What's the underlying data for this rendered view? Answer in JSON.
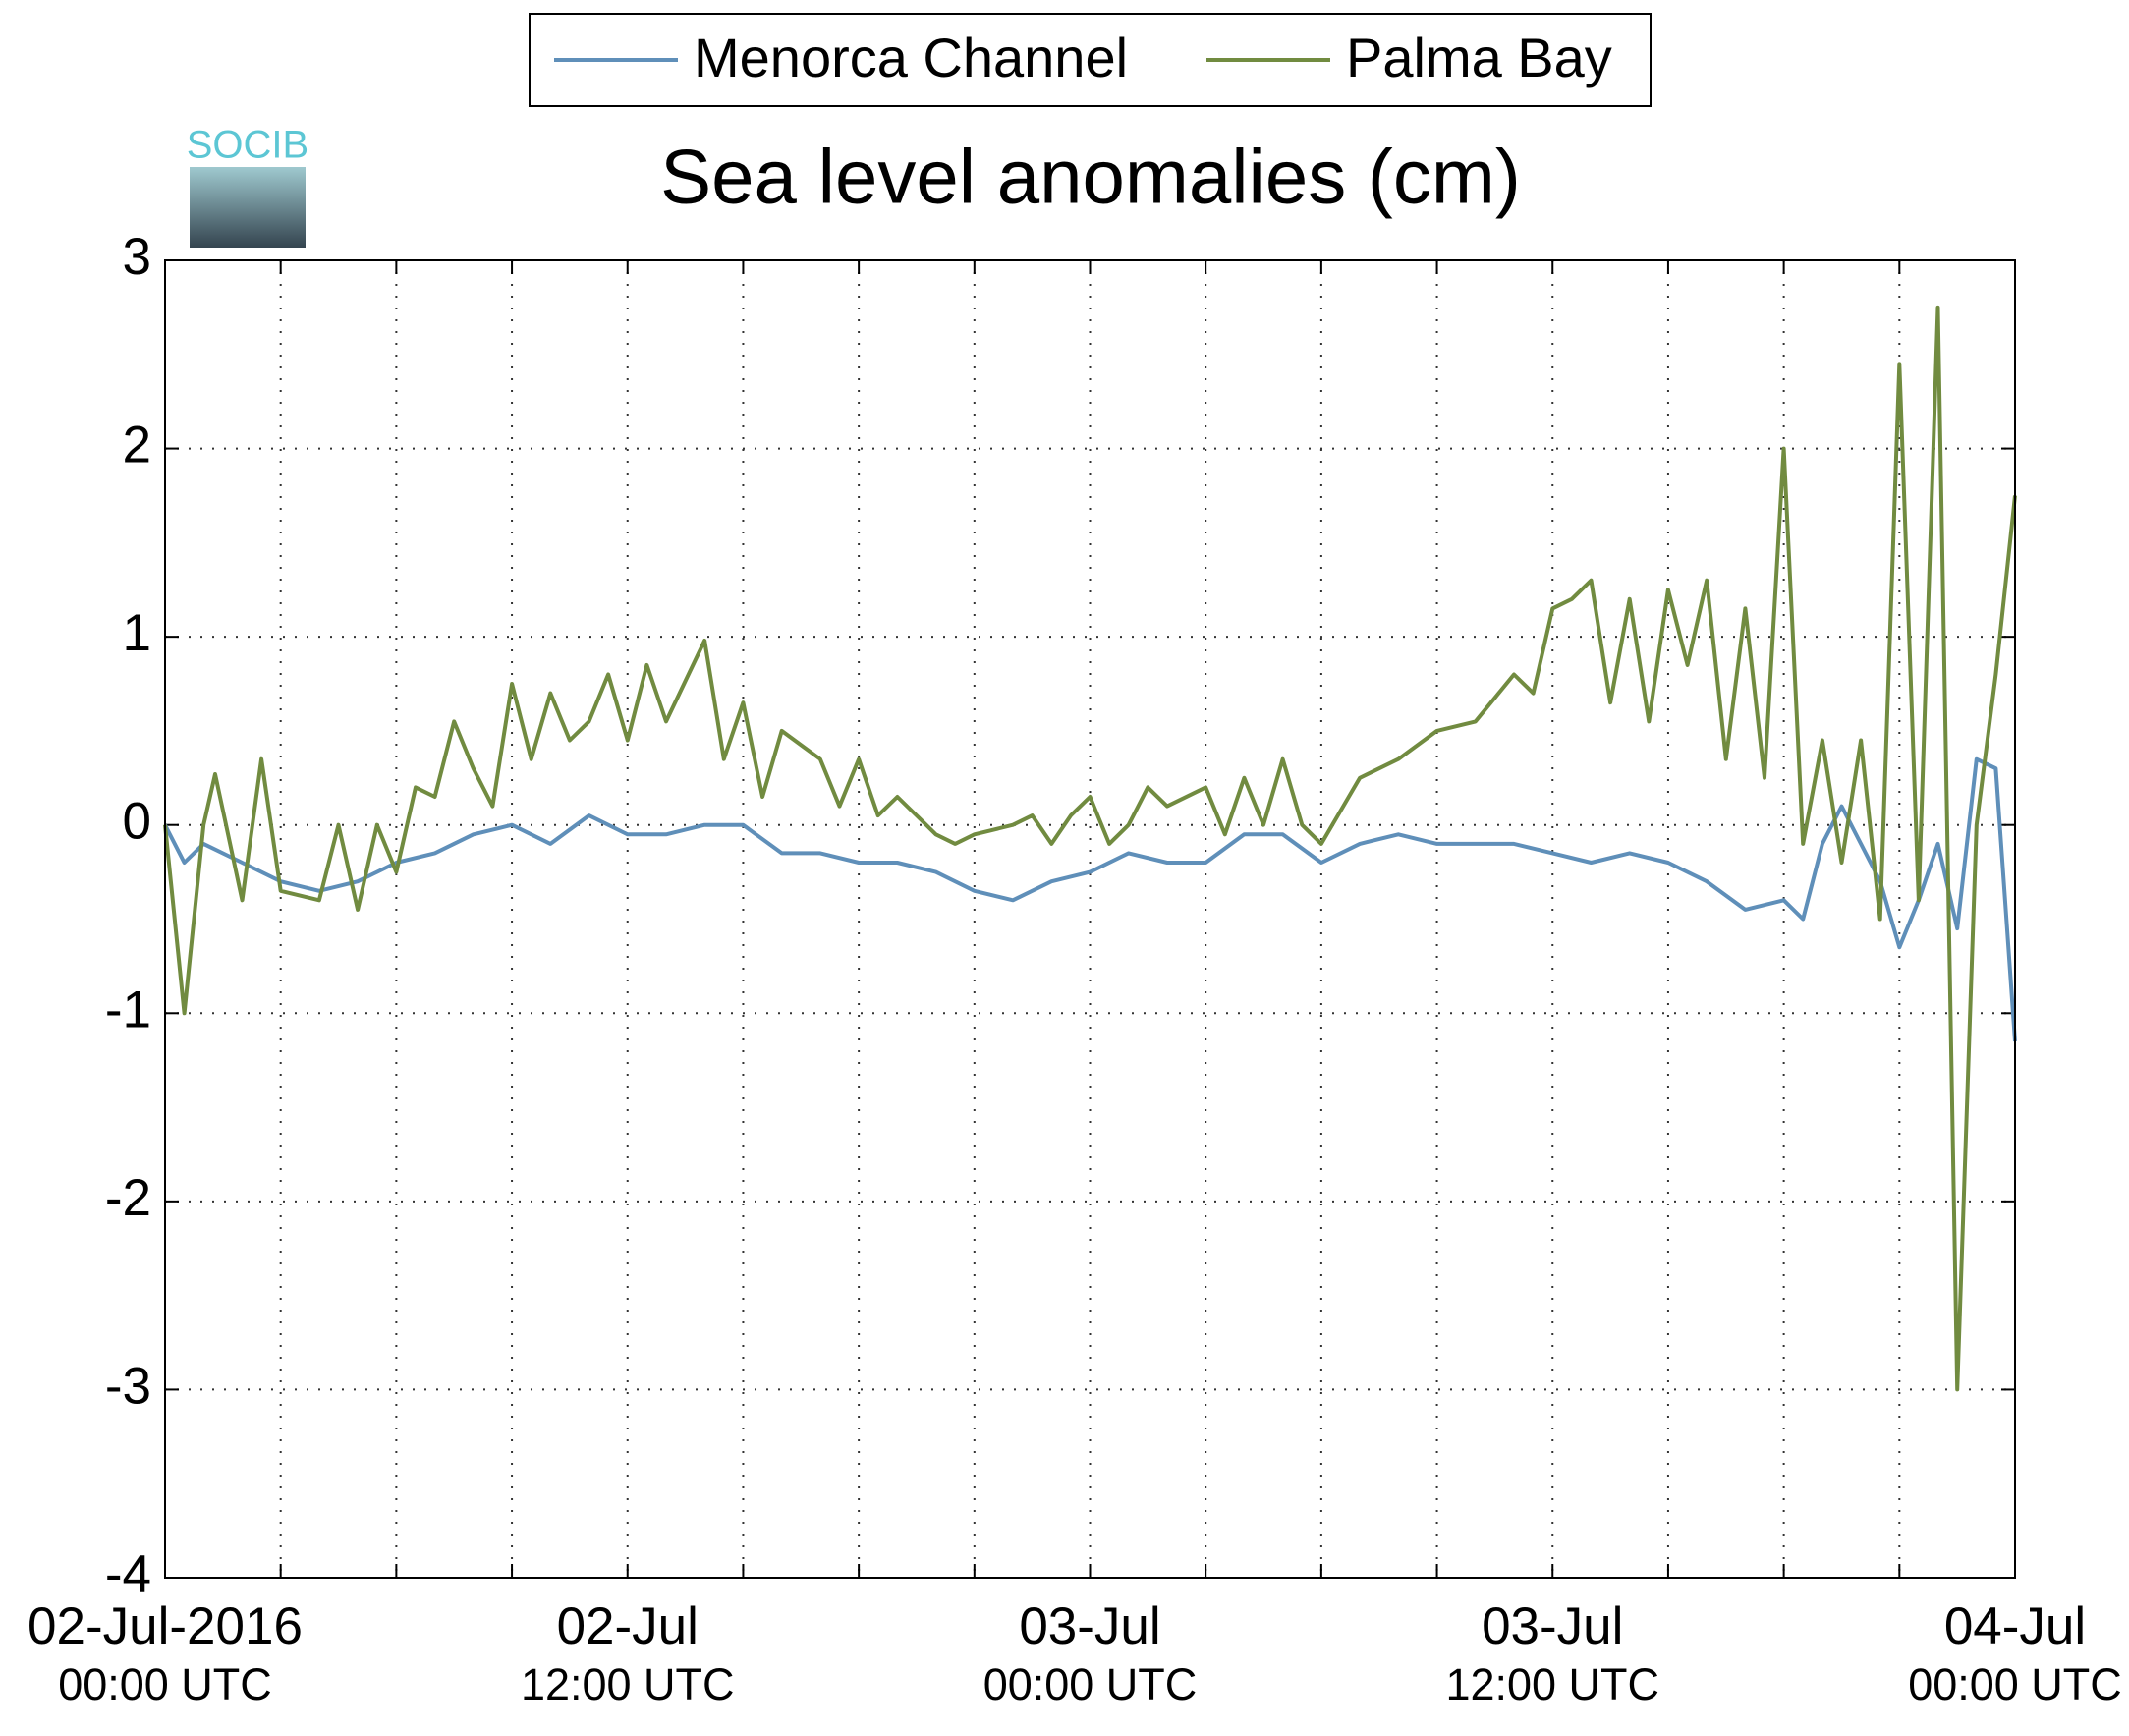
{
  "chart_data": {
    "type": "line",
    "title": "Sea level anomalies (cm)",
    "logo_text": "SOCIB",
    "legend": "top",
    "grid": true,
    "xlim": [
      0,
      48
    ],
    "xticks": [
      {
        "value": 0,
        "label": "02-Jul-2016"
      },
      {
        "value": 12,
        "label": "02-Jul"
      },
      {
        "value": 24,
        "label": "03-Jul"
      },
      {
        "value": 36,
        "label": "03-Jul"
      },
      {
        "value": 48,
        "label": "04-Jul"
      }
    ],
    "xtick_sublabels": [
      "00:00 UTC",
      "12:00 UTC",
      "00:00 UTC",
      "12:00 UTC",
      "00:00 UTC"
    ],
    "xgrid": [
      3,
      6,
      9,
      12,
      15,
      18,
      21,
      24,
      27,
      30,
      33,
      36,
      39,
      42,
      45
    ],
    "ylim": [
      -4,
      3
    ],
    "yticks": [
      -4,
      -3,
      -2,
      -1,
      0,
      1,
      2,
      3
    ],
    "series": [
      {
        "name": "Menorca Channel",
        "color": "#5f8fb9",
        "x": [
          0,
          0.5,
          1,
          2,
          3,
          4,
          5,
          6,
          7,
          8,
          9,
          10,
          11,
          12,
          13,
          14,
          15,
          16,
          17,
          18,
          19,
          20,
          21,
          22,
          23,
          24,
          25,
          26,
          27,
          28,
          29,
          30,
          31,
          32,
          33,
          34,
          35,
          36,
          37,
          38,
          39,
          40,
          41,
          42,
          42.5,
          43,
          43.5,
          44,
          44.5,
          45,
          45.5,
          46,
          46.5,
          47,
          47.5,
          48
        ],
        "values": [
          0,
          -0.2,
          -0.1,
          -0.2,
          -0.3,
          -0.35,
          -0.3,
          -0.2,
          -0.15,
          -0.05,
          0,
          -0.1,
          0.05,
          -0.05,
          -0.05,
          0,
          0,
          -0.15,
          -0.15,
          -0.2,
          -0.2,
          -0.25,
          -0.35,
          -0.4,
          -0.3,
          -0.25,
          -0.15,
          -0.2,
          -0.2,
          -0.05,
          -0.05,
          -0.2,
          -0.1,
          -0.05,
          -0.1,
          -0.1,
          -0.1,
          -0.15,
          -0.2,
          -0.15,
          -0.2,
          -0.3,
          -0.45,
          -0.4,
          -0.5,
          -0.1,
          0.1,
          -0.1,
          -0.3,
          -0.65,
          -0.4,
          -0.1,
          -0.55,
          0.35,
          0.3,
          -1.15
        ]
      },
      {
        "name": "Palma Bay",
        "color": "#718b40",
        "x": [
          0,
          0.5,
          1,
          1.3,
          2,
          2.5,
          3,
          4,
          4.5,
          5,
          5.5,
          6,
          6.5,
          7,
          7.5,
          8,
          8.5,
          9,
          9.5,
          10,
          10.5,
          11,
          11.5,
          12,
          12.5,
          13,
          14,
          14.5,
          15,
          15.5,
          16,
          17,
          17.5,
          18,
          18.5,
          19,
          20,
          20.5,
          21,
          22,
          22.5,
          23,
          23.5,
          24,
          24.5,
          25,
          25.5,
          26,
          27,
          27.5,
          28,
          28.5,
          29,
          29.5,
          30,
          31,
          32,
          33,
          34,
          35,
          35.5,
          36,
          36.5,
          37,
          37.5,
          38,
          38.5,
          39,
          39.5,
          40,
          40.5,
          41,
          41.5,
          42,
          42.5,
          43,
          43.5,
          44,
          44.5,
          45,
          45.5,
          46,
          46.5,
          47,
          47.5,
          48
        ],
        "values": [
          0,
          -1.0,
          0,
          0.27,
          -0.4,
          0.35,
          -0.35,
          -0.4,
          0,
          -0.45,
          0,
          -0.25,
          0.2,
          0.15,
          0.55,
          0.3,
          0.1,
          0.75,
          0.35,
          0.7,
          0.45,
          0.55,
          0.8,
          0.45,
          0.85,
          0.55,
          0.98,
          0.35,
          0.65,
          0.15,
          0.5,
          0.35,
          0.1,
          0.35,
          0.05,
          0.15,
          -0.05,
          -0.1,
          -0.05,
          0,
          0.05,
          -0.1,
          0.05,
          0.15,
          -0.1,
          0,
          0.2,
          0.1,
          0.2,
          -0.05,
          0.25,
          0,
          0.35,
          0,
          -0.1,
          0.25,
          0.35,
          0.5,
          0.55,
          0.8,
          0.7,
          1.15,
          1.2,
          1.3,
          0.65,
          1.2,
          0.55,
          1.25,
          0.85,
          1.3,
          0.35,
          1.15,
          0.25,
          2.0,
          -0.1,
          0.45,
          -0.2,
          0.45,
          -0.5,
          2.45,
          -0.4,
          2.75,
          -3.0,
          0,
          0.8,
          1.75
        ]
      }
    ]
  }
}
